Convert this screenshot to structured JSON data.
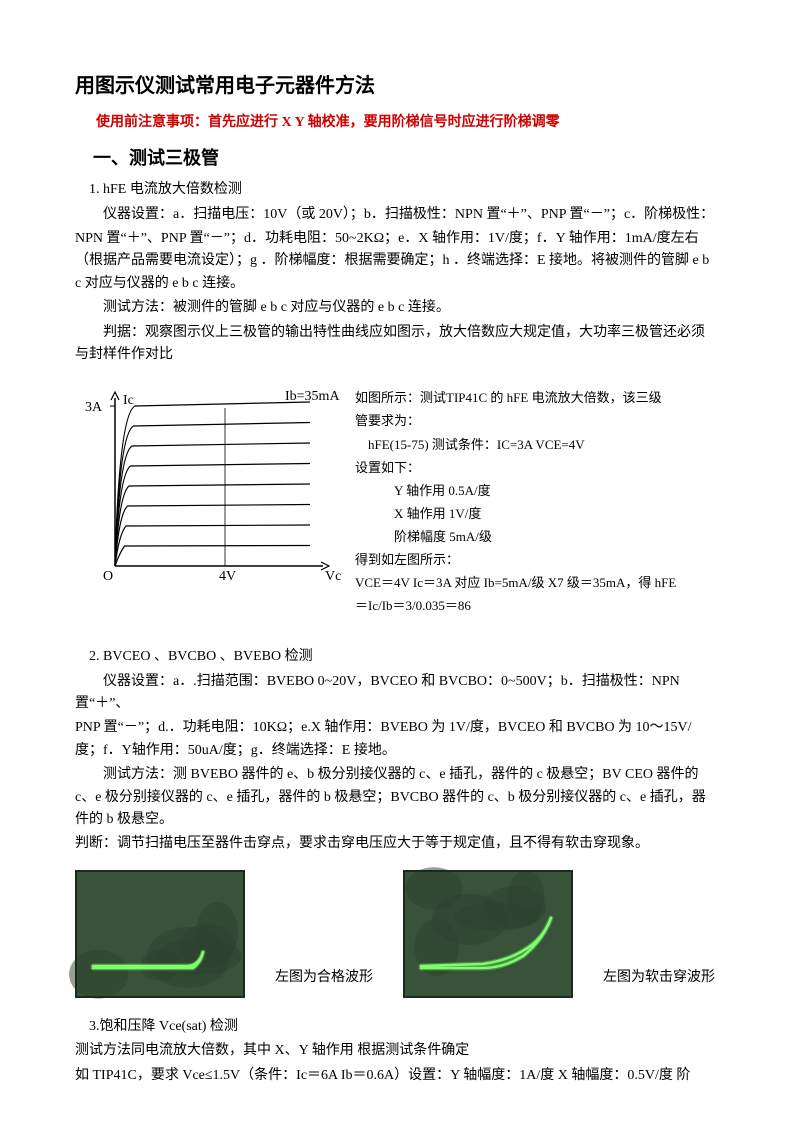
{
  "title": "用图示仪测试常用电子元器件方法",
  "warning": "使用前注意事项：首先应进行 X Y 轴校准，要用阶梯信号时应进行阶梯调零",
  "sec1": {
    "heading": "一、测试三极管",
    "item1": {
      "title": "1.  hFE 电流放大倍数检测",
      "p1": "仪器设置：a．扫描电压：10V（或 20V）；b．扫描极性：NPN 置“＋”、PNP 置“－”；c．阶梯极性：",
      "p2": "NPN 置“＋”、PNP 置“－”；d．功耗电阻：50~2KΩ；e．X 轴作用：1V/度；f．Y 轴作用：1mA/度左右（根据产品需要电流设定）；g ．阶梯幅度：根据需要确定；h ．终端选择：E 接地。将被测件的管脚 e b c 对应与仪器的 e b c 连接。",
      "p3": "测试方法：被测件的管脚 e b c 对应与仪器的 e b c 连接。",
      "p4": "判据：观察图示仪上三极管的输出特性曲线应如图示，放大倍数应大规定值，大功率三极管还必须与封样件作对比"
    },
    "chart": {
      "y_label": "Ic",
      "x_label": "Vc",
      "y_tick": "3A",
      "x_tick": "4V",
      "ib_label": "Ib=35mA",
      "stroke": "#000000",
      "stroke_width": 1.5,
      "n_curves": 8
    },
    "example": {
      "l1": "如图所示：测试TIP41C 的 hFE 电流放大倍数，该三级",
      "l2": "管要求为：",
      "l3": "　hFE(15-75)  测试条件：IC=3A VCE=4V",
      "l4": "设置如下：",
      "l5": "Y 轴作用      0.5A/度",
      "l6": "X 轴作用      1V/度",
      "l7": "阶梯幅度     5mA/级",
      "l8": "得到如左图所示：",
      "l9": "VCE＝4V Ic＝3A  对应 Ib=5mA/级 X7 级＝35mA，得 hFE",
      "l10": "＝Ic/Ib＝3/0.035＝86"
    },
    "item2": {
      "title": "2.  BVCEO 、BVCBO 、BVEBO 检测",
      "p1": "仪器设置：a．.扫描范围：BVEBO 0~20V，BVCEO 和 BVCBO：0~500V；b．扫描极性：NPN 置“＋”、",
      "p2": "PNP 置“－”；d.．功耗电阻：10KΩ；e.X 轴作用：BVEBO 为 1V/度，BVCEO 和 BVCBO 为 10～15V/度；f．Y轴作用：50uA/度；g．终端选择：E 接地。",
      "p3": "测试方法：测 BVEBO 器件的 e、b 极分别接仪器的 c、e 插孔，器件的 c 极悬空；BV CEO 器件的 c、e 极分别接仪器的 c、e 插孔，器件的 b 极悬空；BVCBO 器件的 c、b 极分别接仪器的 c、e 插孔，器件的 b 极悬空。",
      "p4": "判断：调节扫描电压至器件击穿点，要求击穿电压应大于等于规定值，且不得有软击穿现象。"
    },
    "scope": {
      "bg": "#38533a",
      "dark": "#2b3f2d",
      "trace": "#7cff6a",
      "label_ok": "左图为合格波形",
      "label_bad": "左图为软击穿波形"
    },
    "item3": {
      "title": "3.饱和压降 Vce(sat)  检测",
      "p1": "测试方法同电流放大倍数，其中 X、Y 轴作用 根据测试条件确定",
      "p2": "如 TIP41C，要求 Vce≤1.5V（条件：Ic＝6A   Ib＝0.6A）设置：Y 轴幅度：1A/度   X 轴幅度：0.5V/度  阶"
    }
  }
}
